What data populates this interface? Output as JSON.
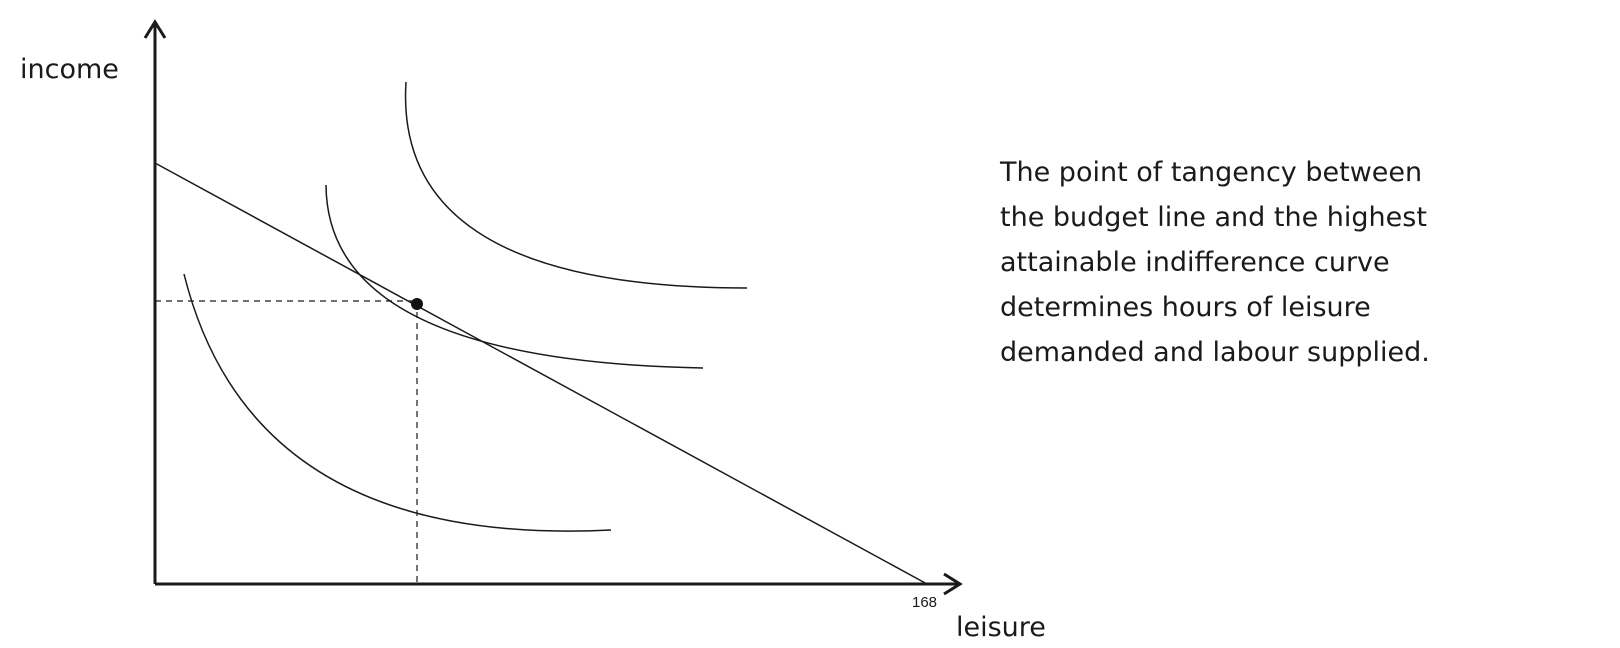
{
  "diagram": {
    "y_axis_label": "income",
    "x_axis_label": "leisure",
    "x_tick_label": "168",
    "elements": [
      "budget line",
      "low indifference curve",
      "tangent indifference curve",
      "high indifference curve",
      "tangency point"
    ]
  },
  "caption": {
    "lines": [
      "The point of tangency between",
      "the budget line and the highest",
      "attainable indifference curve",
      "determines hours of leisure",
      "demanded and labour supplied."
    ]
  }
}
